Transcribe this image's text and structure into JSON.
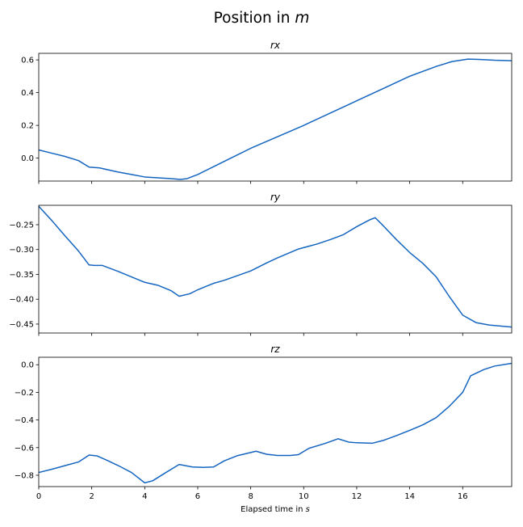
{
  "figure": {
    "suptitle_prefix": "Position in ",
    "suptitle_unit": "m",
    "xlabel_prefix": "Elapsed time in ",
    "xlabel_unit": "s"
  },
  "colors": {
    "line": "#1565c0",
    "axes": "#000000"
  },
  "chart_data": [
    {
      "type": "line",
      "title": "rx",
      "xlim": [
        0,
        17.85
      ],
      "ylim": [
        -0.14,
        0.64
      ],
      "xticks": [
        0,
        2,
        4,
        6,
        8,
        10,
        12,
        14,
        16
      ],
      "yticks": [
        0.0,
        0.2,
        0.4,
        0.6
      ],
      "ytick_labels": [
        "0.0",
        "0.2",
        "0.4",
        "0.6"
      ],
      "show_xticklabels": false,
      "points": [
        [
          0,
          0.05
        ],
        [
          0.5,
          0.03
        ],
        [
          1,
          0.01
        ],
        [
          1.5,
          -0.015
        ],
        [
          1.9,
          -0.055
        ],
        [
          2.3,
          -0.06
        ],
        [
          3,
          -0.085
        ],
        [
          3.5,
          -0.1
        ],
        [
          4,
          -0.115
        ],
        [
          4.5,
          -0.12
        ],
        [
          5,
          -0.125
        ],
        [
          5.35,
          -0.13
        ],
        [
          5.6,
          -0.125
        ],
        [
          6,
          -0.1
        ],
        [
          6.5,
          -0.06
        ],
        [
          7,
          -0.02
        ],
        [
          7.5,
          0.02
        ],
        [
          8,
          0.06
        ],
        [
          9,
          0.13
        ],
        [
          10,
          0.2
        ],
        [
          11,
          0.275
        ],
        [
          12,
          0.35
        ],
        [
          13,
          0.425
        ],
        [
          14,
          0.5
        ],
        [
          15,
          0.56
        ],
        [
          15.6,
          0.59
        ],
        [
          16.2,
          0.605
        ],
        [
          16.6,
          0.603
        ],
        [
          17.2,
          0.598
        ],
        [
          17.85,
          0.595
        ]
      ]
    },
    {
      "type": "line",
      "title": "ry",
      "xlim": [
        0,
        17.85
      ],
      "ylim": [
        -0.468,
        -0.211
      ],
      "xticks": [
        0,
        2,
        4,
        6,
        8,
        10,
        12,
        14,
        16
      ],
      "yticks": [
        -0.25,
        -0.3,
        -0.35,
        -0.4,
        -0.45
      ],
      "ytick_labels": [
        "−0.25",
        "−0.30",
        "−0.35",
        "−0.40",
        "−0.45"
      ],
      "show_xticklabels": false,
      "points": [
        [
          0,
          -0.213
        ],
        [
          0.5,
          -0.242
        ],
        [
          1,
          -0.273
        ],
        [
          1.5,
          -0.303
        ],
        [
          1.9,
          -0.331
        ],
        [
          2.1,
          -0.332
        ],
        [
          2.4,
          -0.332
        ],
        [
          3,
          -0.344
        ],
        [
          3.5,
          -0.355
        ],
        [
          4,
          -0.366
        ],
        [
          4.5,
          -0.372
        ],
        [
          5,
          -0.383
        ],
        [
          5.3,
          -0.394
        ],
        [
          5.7,
          -0.389
        ],
        [
          6,
          -0.381
        ],
        [
          6.6,
          -0.368
        ],
        [
          7,
          -0.362
        ],
        [
          8,
          -0.343
        ],
        [
          8.6,
          -0.327
        ],
        [
          9,
          -0.317
        ],
        [
          9.8,
          -0.299
        ],
        [
          10.5,
          -0.289
        ],
        [
          11,
          -0.28
        ],
        [
          11.5,
          -0.27
        ],
        [
          12,
          -0.254
        ],
        [
          12.5,
          -0.24
        ],
        [
          12.7,
          -0.236
        ],
        [
          13,
          -0.252
        ],
        [
          13.5,
          -0.28
        ],
        [
          14,
          -0.306
        ],
        [
          14.5,
          -0.328
        ],
        [
          15,
          -0.355
        ],
        [
          15.5,
          -0.395
        ],
        [
          16,
          -0.432
        ],
        [
          16.5,
          -0.447
        ],
        [
          17,
          -0.452
        ],
        [
          17.85,
          -0.456
        ]
      ]
    },
    {
      "type": "line",
      "title": "rz",
      "xlim": [
        0,
        17.85
      ],
      "ylim": [
        -0.882,
        0.054
      ],
      "xticks": [
        0,
        2,
        4,
        6,
        8,
        10,
        12,
        14,
        16
      ],
      "xtick_labels": [
        "0",
        "2",
        "4",
        "6",
        "8",
        "10",
        "12",
        "14",
        "16"
      ],
      "yticks": [
        0.0,
        -0.2,
        -0.4,
        -0.6,
        -0.8
      ],
      "ytick_labels": [
        "0.0",
        "−0.2",
        "−0.4",
        "−0.6",
        "−0.8"
      ],
      "show_xticklabels": true,
      "points": [
        [
          0,
          -0.78
        ],
        [
          0.5,
          -0.756
        ],
        [
          1,
          -0.73
        ],
        [
          1.5,
          -0.704
        ],
        [
          1.9,
          -0.654
        ],
        [
          2.2,
          -0.66
        ],
        [
          2.6,
          -0.694
        ],
        [
          3,
          -0.73
        ],
        [
          3.5,
          -0.78
        ],
        [
          4,
          -0.855
        ],
        [
          4.3,
          -0.84
        ],
        [
          4.8,
          -0.78
        ],
        [
          5.3,
          -0.722
        ],
        [
          5.8,
          -0.74
        ],
        [
          6.2,
          -0.743
        ],
        [
          6.6,
          -0.74
        ],
        [
          7,
          -0.696
        ],
        [
          7.5,
          -0.658
        ],
        [
          8.2,
          -0.626
        ],
        [
          8.6,
          -0.648
        ],
        [
          9,
          -0.657
        ],
        [
          9.5,
          -0.657
        ],
        [
          9.8,
          -0.651
        ],
        [
          10.2,
          -0.605
        ],
        [
          10.8,
          -0.57
        ],
        [
          11.3,
          -0.536
        ],
        [
          11.7,
          -0.56
        ],
        [
          12,
          -0.565
        ],
        [
          12.6,
          -0.568
        ],
        [
          13,
          -0.548
        ],
        [
          13.5,
          -0.513
        ],
        [
          14,
          -0.475
        ],
        [
          14.5,
          -0.435
        ],
        [
          15,
          -0.383
        ],
        [
          15.5,
          -0.3
        ],
        [
          16,
          -0.2
        ],
        [
          16.3,
          -0.08
        ],
        [
          16.8,
          -0.035
        ],
        [
          17.2,
          -0.01
        ],
        [
          17.85,
          0.01
        ]
      ]
    }
  ]
}
